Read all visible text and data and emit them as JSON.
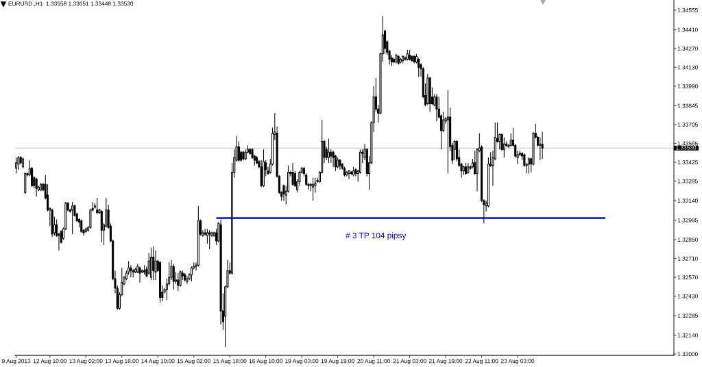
{
  "chart_data": {
    "type": "candlestick",
    "title": "EURUSD.,H1  1.33558 1.33651 1.33448 1.33530",
    "categories": [
      "9 Aug 2013",
      null,
      null,
      null,
      null,
      null,
      null,
      null,
      null,
      null,
      null,
      null,
      null,
      null,
      null,
      "12 Aug 10:00",
      null,
      null,
      null,
      null,
      null,
      null,
      null,
      null,
      null,
      null,
      null,
      null,
      null,
      null,
      null,
      "13 Aug 02:00",
      null,
      null,
      null,
      null,
      null,
      null,
      null,
      null,
      null,
      null,
      null,
      null,
      null,
      null,
      null,
      "13 Aug 18:00",
      null,
      null,
      null,
      null,
      null,
      null,
      null,
      null,
      null,
      null,
      null,
      null,
      null,
      null,
      null,
      "14 Aug 10:00",
      null,
      null,
      null,
      null,
      null,
      null,
      null,
      null,
      null,
      null,
      null,
      null,
      null,
      null,
      null,
      "15 Aug 02:00",
      null,
      null,
      null,
      null,
      null,
      null,
      null,
      null,
      null,
      null,
      null,
      null,
      null,
      null,
      null,
      "15 Aug 18:00",
      null,
      null,
      null,
      null,
      null,
      null,
      null,
      null,
      null,
      null,
      null,
      null,
      null,
      null,
      null,
      "16 Aug 10:00",
      null,
      null,
      null,
      null,
      null,
      null,
      null,
      null,
      null,
      null,
      null,
      null,
      null,
      null,
      null,
      "19 Aug 03:00",
      null,
      null,
      null,
      null,
      null,
      null,
      null,
      null,
      null,
      null,
      null,
      null,
      null,
      null,
      null,
      "19 Aug 19:00",
      null,
      null,
      null,
      null,
      null,
      null,
      null,
      null,
      null,
      null,
      null,
      null,
      null,
      null,
      null,
      "20 Aug 11:00",
      null,
      null,
      null,
      null,
      null,
      null,
      null,
      null,
      null,
      null,
      null,
      null,
      null,
      null,
      null,
      "21 Aug 03:00",
      null,
      null,
      null,
      null,
      null,
      null,
      null,
      null,
      null,
      null,
      null,
      null,
      null,
      null,
      null,
      "21 Aug 19:00",
      null,
      null,
      null,
      null,
      null,
      null,
      null,
      null,
      null,
      null,
      null,
      null,
      null,
      null,
      null,
      "22 Aug 11:00",
      null,
      null,
      null,
      null,
      null,
      null,
      null,
      null,
      null,
      null,
      null,
      null,
      null,
      null,
      null,
      "23 Aug 03:00",
      null,
      null,
      null,
      null,
      null,
      null,
      null,
      null,
      null,
      null,
      null,
      null,
      null,
      null,
      null,
      null,
      null,
      null,
      null,
      null,
      null,
      null,
      null,
      null,
      null,
      null,
      null,
      null,
      null,
      null,
      null,
      null,
      null,
      null,
      null,
      null,
      null,
      null,
      null,
      null,
      null,
      null,
      null,
      null,
      null,
      null,
      null,
      null,
      null,
      null,
      null,
      null,
      null,
      null,
      null,
      null,
      null,
      null,
      null,
      null,
      null,
      null,
      null,
      null,
      null,
      null,
      null,
      null,
      null
    ],
    "ohlc": [
      [
        1.3338,
        1.3346,
        1.3334,
        1.3342
      ],
      [
        1.3341,
        1.3347,
        1.3337,
        1.3346
      ],
      [
        1.3346,
        1.3347,
        1.3341,
        1.3342
      ],
      [
        1.3339,
        1.3346,
        1.3338,
        1.3345
      ],
      [
        1.332,
        1.3335,
        1.3319,
        1.3334
      ],
      [
        1.3334,
        1.3335,
        1.3332,
        1.3333
      ],
      [
        1.3333,
        1.3344,
        1.3332,
        1.3338
      ],
      [
        1.3338,
        1.3339,
        1.3324,
        1.3325
      ],
      [
        1.3331,
        1.3332,
        1.3323,
        1.3325
      ],
      [
        1.333,
        1.3331,
        1.3317,
        1.3323
      ],
      [
        1.3322,
        1.3325,
        1.3321,
        1.3324
      ],
      [
        1.3322,
        1.3327,
        1.3321,
        1.3326
      ],
      [
        1.3326,
        1.3327,
        1.3321,
        1.3322
      ],
      [
        1.3326,
        1.3333,
        1.3315,
        1.3316
      ],
      [
        1.3318,
        1.3326,
        1.3306,
        1.3307
      ],
      [
        1.3307,
        1.3309,
        1.3295,
        1.3308
      ],
      [
        1.3307,
        1.3308,
        1.3287,
        1.3289
      ],
      [
        1.329,
        1.3302,
        1.3288,
        1.3296
      ],
      [
        1.3296,
        1.33,
        1.3287,
        1.3288
      ],
      [
        1.3289,
        1.329,
        1.3277,
        1.3288
      ],
      [
        1.3291,
        1.3292,
        1.3282,
        1.3283
      ],
      [
        1.3286,
        1.3294,
        1.3285,
        1.3293
      ],
      [
        1.3293,
        1.3313,
        1.3292,
        1.3312
      ],
      [
        1.3312,
        1.3313,
        1.3306,
        1.3307
      ],
      [
        1.3307,
        1.3308,
        1.3305,
        1.3306
      ],
      [
        1.3307,
        1.3313,
        1.3289,
        1.331
      ],
      [
        1.331,
        1.3311,
        1.3302,
        1.3303
      ],
      [
        1.3304,
        1.3305,
        1.3298,
        1.3299
      ],
      [
        1.33,
        1.3301,
        1.3294,
        1.3298
      ],
      [
        1.3299,
        1.33,
        1.329,
        1.3291
      ],
      [
        1.3292,
        1.3293,
        1.3288,
        1.329
      ],
      [
        1.3291,
        1.3294,
        1.329,
        1.3293
      ],
      [
        1.3292,
        1.3295,
        1.3291,
        1.3294
      ],
      [
        1.3294,
        1.3308,
        1.3293,
        1.3307
      ],
      [
        1.3308,
        1.3313,
        1.3306,
        1.3307
      ],
      [
        1.3309,
        1.3312,
        1.3308,
        1.331
      ],
      [
        1.3307,
        1.3316,
        1.3304,
        1.3305
      ],
      [
        1.3305,
        1.3308,
        1.3304,
        1.3307
      ],
      [
        1.3306,
        1.3307,
        1.3283,
        1.3292
      ],
      [
        1.3292,
        1.3297,
        1.3281,
        1.3296
      ],
      [
        1.3295,
        1.3316,
        1.3294,
        1.3307
      ],
      [
        1.3307,
        1.3311,
        1.3293,
        1.3294
      ],
      [
        1.3295,
        1.3297,
        1.3283,
        1.3284
      ],
      [
        1.3284,
        1.3285,
        1.3255,
        1.3256
      ],
      [
        1.3256,
        1.3262,
        1.3245,
        1.3249
      ],
      [
        1.3249,
        1.3251,
        1.3233,
        1.3234
      ],
      [
        1.3234,
        1.3246,
        1.3233,
        1.3244
      ],
      [
        1.3244,
        1.3264,
        1.3243,
        1.3253
      ],
      [
        1.3252,
        1.3258,
        1.3251,
        1.3257
      ],
      [
        1.3256,
        1.3262,
        1.3255,
        1.326
      ],
      [
        1.3261,
        1.3269,
        1.3259,
        1.3264
      ],
      [
        1.3264,
        1.3266,
        1.3257,
        1.3262
      ],
      [
        1.3262,
        1.3263,
        1.3257,
        1.3261
      ],
      [
        1.3261,
        1.3264,
        1.326,
        1.3263
      ],
      [
        1.3261,
        1.3267,
        1.326,
        1.3265
      ],
      [
        1.3264,
        1.3265,
        1.3253,
        1.326
      ],
      [
        1.3261,
        1.3263,
        1.326,
        1.3262
      ],
      [
        1.3262,
        1.3266,
        1.3259,
        1.3261
      ],
      [
        1.3263,
        1.3265,
        1.3257,
        1.3258
      ],
      [
        1.326,
        1.3275,
        1.3259,
        1.3269
      ],
      [
        1.3257,
        1.3279,
        1.3255,
        1.3272
      ],
      [
        1.3272,
        1.328,
        1.3255,
        1.3262
      ],
      [
        1.3261,
        1.3277,
        1.3255,
        1.3269
      ],
      [
        1.3269,
        1.327,
        1.3261,
        1.3262
      ],
      [
        1.3268,
        1.3269,
        1.3238,
        1.3242
      ],
      [
        1.3246,
        1.3251,
        1.3239,
        1.3242
      ],
      [
        1.3246,
        1.3249,
        1.3245,
        1.3248
      ],
      [
        1.3248,
        1.3256,
        1.324,
        1.3252
      ],
      [
        1.3252,
        1.3268,
        1.3251,
        1.3257
      ],
      [
        1.3257,
        1.327,
        1.3255,
        1.3265
      ],
      [
        1.3265,
        1.3267,
        1.3248,
        1.3254
      ],
      [
        1.3254,
        1.3261,
        1.3252,
        1.3255
      ],
      [
        1.3255,
        1.326,
        1.3247,
        1.3251
      ],
      [
        1.3251,
        1.3262,
        1.325,
        1.3261
      ],
      [
        1.326,
        1.3262,
        1.3255,
        1.3258
      ],
      [
        1.3259,
        1.326,
        1.3254,
        1.3255
      ],
      [
        1.3254,
        1.3258,
        1.3252,
        1.3256
      ],
      [
        1.3256,
        1.326,
        1.3255,
        1.3259
      ],
      [
        1.3259,
        1.3265,
        1.3254,
        1.3264
      ],
      [
        1.3264,
        1.3268,
        1.3263,
        1.3265
      ],
      [
        1.3265,
        1.3268,
        1.3262,
        1.3266
      ],
      [
        1.3266,
        1.331,
        1.3265,
        1.3299
      ],
      [
        1.3299,
        1.33,
        1.3288,
        1.3289
      ],
      [
        1.3288,
        1.3292,
        1.3287,
        1.329
      ],
      [
        1.329,
        1.3293,
        1.3288,
        1.3289
      ],
      [
        1.3288,
        1.3293,
        1.3282,
        1.329
      ],
      [
        1.329,
        1.3292,
        1.3278,
        1.3289
      ],
      [
        1.3288,
        1.3291,
        1.3287,
        1.329
      ],
      [
        1.3288,
        1.3291,
        1.3287,
        1.329
      ],
      [
        1.329,
        1.3293,
        1.3281,
        1.3284
      ],
      [
        1.3284,
        1.3298,
        1.3283,
        1.3297
      ],
      [
        1.3296,
        1.33,
        1.3222,
        1.3232
      ],
      [
        1.3232,
        1.3245,
        1.3218,
        1.3224
      ],
      [
        1.3228,
        1.3251,
        1.3205,
        1.325
      ],
      [
        1.325,
        1.327,
        1.3249,
        1.3262
      ],
      [
        1.3262,
        1.3268,
        1.3259,
        1.326
      ],
      [
        1.326,
        1.3342,
        1.3259,
        1.3335
      ],
      [
        1.3335,
        1.3352,
        1.3331,
        1.3346
      ],
      [
        1.3344,
        1.3362,
        1.3343,
        1.3354
      ],
      [
        1.3354,
        1.3358,
        1.3343,
        1.3344
      ],
      [
        1.335,
        1.3351,
        1.3343,
        1.3344
      ],
      [
        1.335,
        1.3351,
        1.3344,
        1.3345
      ],
      [
        1.3345,
        1.3352,
        1.3344,
        1.335
      ],
      [
        1.335,
        1.3355,
        1.3349,
        1.3352
      ],
      [
        1.3352,
        1.3353,
        1.3348,
        1.3349
      ],
      [
        1.3352,
        1.3353,
        1.3345,
        1.3346
      ],
      [
        1.3347,
        1.3348,
        1.334,
        1.3344
      ],
      [
        1.3346,
        1.3347,
        1.3341,
        1.3342
      ],
      [
        1.3343,
        1.3344,
        1.3338,
        1.3339
      ],
      [
        1.3339,
        1.3344,
        1.3324,
        1.3325
      ],
      [
        1.3325,
        1.3352,
        1.3324,
        1.3343
      ],
      [
        1.3342,
        1.3344,
        1.3332,
        1.3337
      ],
      [
        1.3336,
        1.3339,
        1.3333,
        1.3334
      ],
      [
        1.3335,
        1.3345,
        1.3334,
        1.3341
      ],
      [
        1.3341,
        1.3368,
        1.334,
        1.3364
      ],
      [
        1.3363,
        1.3379,
        1.3359,
        1.3365
      ],
      [
        1.3364,
        1.3369,
        1.3331,
        1.3332
      ],
      [
        1.3332,
        1.3333,
        1.3319,
        1.332
      ],
      [
        1.332,
        1.3321,
        1.3314,
        1.3317
      ],
      [
        1.3325,
        1.3326,
        1.3314,
        1.3319
      ],
      [
        1.3318,
        1.3325,
        1.3311,
        1.3321
      ],
      [
        1.3321,
        1.334,
        1.332,
        1.3335
      ],
      [
        1.3335,
        1.3336,
        1.3332,
        1.3334
      ],
      [
        1.3335,
        1.3342,
        1.3325,
        1.3326
      ],
      [
        1.3334,
        1.3336,
        1.3324,
        1.3325
      ],
      [
        1.3322,
        1.333,
        1.332,
        1.3328
      ],
      [
        1.3328,
        1.3336,
        1.3325,
        1.3335
      ],
      [
        1.3335,
        1.3339,
        1.3334,
        1.3338
      ],
      [
        1.3338,
        1.3339,
        1.3332,
        1.3334
      ],
      [
        1.3333,
        1.3334,
        1.3325,
        1.3326
      ],
      [
        1.3326,
        1.3327,
        1.3322,
        1.3325
      ],
      [
        1.3325,
        1.3327,
        1.3321,
        1.3326
      ],
      [
        1.3324,
        1.3331,
        1.3314,
        1.3326
      ],
      [
        1.3325,
        1.3331,
        1.332,
        1.3327
      ],
      [
        1.3328,
        1.3331,
        1.3327,
        1.3329
      ],
      [
        1.3328,
        1.3336,
        1.3327,
        1.3335
      ],
      [
        1.3335,
        1.3374,
        1.3334,
        1.3358
      ],
      [
        1.3358,
        1.3359,
        1.3342,
        1.3346
      ],
      [
        1.3352,
        1.3354,
        1.3344,
        1.3346
      ],
      [
        1.3346,
        1.336,
        1.3342,
        1.335
      ],
      [
        1.335,
        1.3352,
        1.3342,
        1.3347
      ],
      [
        1.335,
        1.3351,
        1.3339,
        1.3346
      ],
      [
        1.3347,
        1.3348,
        1.3336,
        1.3339
      ],
      [
        1.3339,
        1.3346,
        1.3338,
        1.3344
      ],
      [
        1.3344,
        1.3345,
        1.3337,
        1.334
      ],
      [
        1.3341,
        1.3342,
        1.3337,
        1.3338
      ],
      [
        1.3338,
        1.3339,
        1.3332,
        1.3333
      ],
      [
        1.3333,
        1.3336,
        1.3332,
        1.3335
      ],
      [
        1.3334,
        1.3337,
        1.333,
        1.3336
      ],
      [
        1.3335,
        1.3336,
        1.3333,
        1.3334
      ],
      [
        1.3333,
        1.3339,
        1.3332,
        1.3336
      ],
      [
        1.3337,
        1.3338,
        1.3332,
        1.3334
      ],
      [
        1.3334,
        1.3337,
        1.3328,
        1.3336
      ],
      [
        1.3335,
        1.3352,
        1.3334,
        1.335
      ],
      [
        1.335,
        1.3352,
        1.3342,
        1.3349
      ],
      [
        1.3346,
        1.3356,
        1.3344,
        1.3352
      ],
      [
        1.3352,
        1.3353,
        1.3332,
        1.3334
      ],
      [
        1.3334,
        1.3347,
        1.3322,
        1.3342
      ],
      [
        1.3342,
        1.3373,
        1.3341,
        1.3372
      ],
      [
        1.3372,
        1.3399,
        1.3365,
        1.3391
      ],
      [
        1.3391,
        1.3405,
        1.338,
        1.3382
      ],
      [
        1.3382,
        1.3385,
        1.3372,
        1.3379
      ],
      [
        1.3379,
        1.3424,
        1.3378,
        1.3423
      ],
      [
        1.3423,
        1.3451,
        1.3417,
        1.3437
      ],
      [
        1.344,
        1.3441,
        1.3423,
        1.3427
      ],
      [
        1.3432,
        1.3433,
        1.3422,
        1.3424
      ],
      [
        1.3425,
        1.3426,
        1.3415,
        1.3419
      ],
      [
        1.342,
        1.3422,
        1.3414,
        1.3417
      ],
      [
        1.3419,
        1.342,
        1.3416,
        1.3417
      ],
      [
        1.3417,
        1.3423,
        1.3416,
        1.3422
      ],
      [
        1.3421,
        1.3422,
        1.3415,
        1.3416
      ],
      [
        1.3417,
        1.342,
        1.3416,
        1.3419
      ],
      [
        1.3418,
        1.3422,
        1.3416,
        1.3421
      ],
      [
        1.342,
        1.3421,
        1.3418,
        1.3419
      ],
      [
        1.3419,
        1.3426,
        1.3418,
        1.3423
      ],
      [
        1.3422,
        1.3426,
        1.3418,
        1.3419
      ],
      [
        1.3421,
        1.3422,
        1.3417,
        1.3418
      ],
      [
        1.3421,
        1.3422,
        1.3416,
        1.3417
      ],
      [
        1.3417,
        1.3423,
        1.3416,
        1.3421
      ],
      [
        1.3419,
        1.342,
        1.3406,
        1.3413
      ],
      [
        1.3415,
        1.3416,
        1.3406,
        1.3412
      ],
      [
        1.3412,
        1.3413,
        1.339,
        1.3391
      ],
      [
        1.3392,
        1.3401,
        1.3384,
        1.3385
      ],
      [
        1.3386,
        1.3408,
        1.3385,
        1.3405
      ],
      [
        1.3405,
        1.3406,
        1.338,
        1.3386
      ],
      [
        1.3391,
        1.3398,
        1.3385,
        1.3386
      ],
      [
        1.3385,
        1.3393,
        1.3384,
        1.3391
      ],
      [
        1.3391,
        1.3393,
        1.3373,
        1.3382
      ],
      [
        1.3382,
        1.3391,
        1.3375,
        1.3376
      ],
      [
        1.3377,
        1.3378,
        1.3352,
        1.3366
      ],
      [
        1.3366,
        1.338,
        1.3365,
        1.3374
      ],
      [
        1.3373,
        1.3376,
        1.3371,
        1.3375
      ],
      [
        1.3374,
        1.3396,
        1.3334,
        1.3376
      ],
      [
        1.3376,
        1.3383,
        1.3351,
        1.3354
      ],
      [
        1.3355,
        1.3357,
        1.3341,
        1.3344
      ],
      [
        1.3352,
        1.3359,
        1.3344,
        1.3358
      ],
      [
        1.3358,
        1.3359,
        1.3343,
        1.3345
      ],
      [
        1.3346,
        1.3352,
        1.3339,
        1.334
      ],
      [
        1.3341,
        1.3342,
        1.3331,
        1.3336
      ],
      [
        1.3336,
        1.334,
        1.3333,
        1.3339
      ],
      [
        1.3339,
        1.3342,
        1.3333,
        1.3334
      ],
      [
        1.3335,
        1.3342,
        1.3334,
        1.3339
      ],
      [
        1.3339,
        1.334,
        1.3337,
        1.3338
      ],
      [
        1.3339,
        1.3345,
        1.3338,
        1.3342
      ],
      [
        1.3342,
        1.3351,
        1.3333,
        1.3334
      ],
      [
        1.3334,
        1.3353,
        1.3321,
        1.3352
      ],
      [
        1.3351,
        1.3364,
        1.335,
        1.3353
      ],
      [
        1.3354,
        1.3355,
        1.3313,
        1.3314
      ],
      [
        1.3314,
        1.3315,
        1.3297,
        1.3311
      ],
      [
        1.331,
        1.3314,
        1.3306,
        1.3312
      ],
      [
        1.331,
        1.3346,
        1.3309,
        1.3341
      ],
      [
        1.3341,
        1.335,
        1.3339,
        1.334
      ],
      [
        1.334,
        1.3351,
        1.3325,
        1.3346
      ],
      [
        1.3345,
        1.3372,
        1.3344,
        1.3361
      ],
      [
        1.336,
        1.3372,
        1.3357,
        1.3358
      ],
      [
        1.3358,
        1.3364,
        1.3352,
        1.3363
      ],
      [
        1.3363,
        1.3364,
        1.3351,
        1.3352
      ],
      [
        1.3352,
        1.3361,
        1.3346,
        1.3356
      ],
      [
        1.3356,
        1.3358,
        1.3354,
        1.3355
      ],
      [
        1.3354,
        1.3356,
        1.3353,
        1.3355
      ],
      [
        1.3355,
        1.3364,
        1.3354,
        1.3359
      ],
      [
        1.3359,
        1.3368,
        1.3354,
        1.3355
      ],
      [
        1.3355,
        1.3356,
        1.3346,
        1.3347
      ],
      [
        1.3346,
        1.3351,
        1.3341,
        1.3348
      ],
      [
        1.3348,
        1.3351,
        1.3347,
        1.3349
      ],
      [
        1.3349,
        1.335,
        1.3344,
        1.3347
      ],
      [
        1.3348,
        1.3349,
        1.3339,
        1.334
      ],
      [
        1.334,
        1.3342,
        1.3334,
        1.3341
      ],
      [
        1.3341,
        1.3346,
        1.3334,
        1.3345
      ],
      [
        1.3345,
        1.3346,
        1.3335,
        1.3341
      ],
      [
        1.3341,
        1.3365,
        1.334,
        1.3364
      ],
      [
        1.3364,
        1.3371,
        1.336,
        1.3361
      ],
      [
        1.3361,
        1.3362,
        1.3354,
        1.3355
      ],
      [
        1.3355,
        1.3361,
        1.3344,
        1.3356
      ],
      [
        1.33558,
        1.33651,
        1.33448,
        1.3353
      ],
      null,
      null,
      null,
      null,
      null,
      null,
      null,
      null,
      null,
      null,
      null,
      null,
      null,
      null,
      null,
      null,
      null,
      null,
      null,
      null,
      null,
      null,
      null,
      null,
      null,
      null,
      null,
      null,
      null,
      null,
      null,
      null,
      null,
      null,
      null,
      null,
      null,
      null,
      null,
      null,
      null,
      null,
      null,
      null,
      null,
      null,
      null,
      null,
      null,
      null,
      null,
      null,
      null,
      null,
      null,
      null,
      null,
      null
    ],
    "series": [
      {
        "type": "line",
        "name": "# 3 TP 104 pipsy",
        "color": "#0000ff",
        "values": [
          null,
          null,
          null,
          null,
          null,
          null,
          null,
          null,
          null,
          null,
          null,
          null,
          null,
          null,
          null,
          null,
          null,
          null,
          null,
          null,
          null,
          null,
          null,
          null,
          null,
          null,
          null,
          null,
          null,
          null,
          null,
          null,
          null,
          null,
          null,
          null,
          null,
          null,
          null,
          null,
          null,
          null,
          null,
          null,
          null,
          null,
          null,
          null,
          null,
          null,
          null,
          null,
          null,
          null,
          null,
          null,
          null,
          null,
          null,
          null,
          null,
          null,
          null,
          null,
          null,
          null,
          null,
          null,
          null,
          null,
          null,
          null,
          null,
          null,
          null,
          null,
          null,
          null,
          null,
          null,
          null,
          null,
          null,
          null,
          null,
          null,
          null,
          null,
          null,
          1.3301,
          1.3301,
          1.3301,
          1.3301,
          1.3301,
          1.3301,
          1.3301,
          1.3301,
          1.3301,
          1.3301,
          1.3301,
          1.3301,
          1.3301,
          1.3301,
          1.3301,
          1.3301,
          1.3301,
          1.3301,
          1.3301,
          1.3301,
          1.3301,
          1.3301,
          1.3301,
          1.3301,
          1.3301,
          1.3301,
          1.3301,
          1.3301,
          1.3301,
          1.3301,
          1.3301,
          1.3301,
          1.3301,
          1.3301,
          1.3301,
          1.3301,
          1.3301,
          1.3301,
          1.3301,
          1.3301,
          1.3301,
          1.3301,
          1.3301,
          1.3301,
          1.3301,
          1.3301,
          1.3301,
          1.3301,
          1.3301,
          1.3301,
          1.3301,
          1.3301,
          1.3301,
          1.3301,
          1.3301,
          1.3301,
          1.3301,
          1.3301,
          1.3301,
          1.3301,
          1.3301,
          1.3301,
          1.3301,
          1.3301,
          1.3301,
          1.3301,
          1.3301,
          1.3301,
          1.3301,
          1.3301,
          1.3301,
          1.3301,
          1.3301,
          1.3301,
          1.3301,
          1.3301,
          1.3301,
          1.3301,
          1.3301,
          1.3301,
          1.3301,
          1.3301,
          1.3301,
          1.3301,
          1.3301,
          1.3301,
          1.3301,
          1.3301,
          1.3301,
          1.3301,
          1.3301,
          1.3301,
          1.3301,
          1.3301,
          1.3301,
          1.3301,
          1.3301,
          1.3301,
          1.3301,
          1.3301,
          1.3301,
          1.3301,
          1.3301,
          1.3301,
          1.3301,
          1.3301,
          1.3301,
          1.3301,
          1.3301,
          1.3301,
          1.3301,
          1.3301,
          1.3301,
          1.3301,
          1.3301,
          1.3301,
          1.3301,
          1.3301,
          1.3301,
          1.3301,
          1.3301,
          1.3301,
          1.3301,
          1.3301,
          1.3301,
          1.3301,
          1.3301,
          1.3301,
          1.3301,
          1.3301,
          1.3301,
          1.3301,
          1.3301,
          1.3301,
          1.3301,
          1.3301,
          1.3301,
          1.3301,
          1.3301,
          1.3301,
          1.3301,
          1.3301,
          1.3301,
          1.3301,
          1.3301,
          1.3301,
          1.3301,
          1.3301,
          1.3301,
          1.3301,
          1.3301,
          1.3301,
          1.3301,
          1.3301,
          1.3301,
          1.3301,
          1.3301,
          1.3301,
          1.3301,
          1.3301,
          1.3301,
          1.3301,
          1.3301,
          1.3301,
          1.3301,
          1.3301,
          1.3301,
          1.3301,
          1.3301,
          1.3301,
          1.3301,
          1.3301,
          1.3301,
          1.3301,
          null,
          null,
          null,
          null,
          null,
          null,
          null,
          null,
          null,
          null,
          null,
          null,
          null,
          null,
          null,
          null,
          null,
          null,
          null,
          null,
          null,
          null,
          null,
          null,
          null,
          null,
          null,
          null,
          null,
          null
        ]
      }
    ],
    "ylim": [
      1.3199,
      1.3463
    ],
    "yticks": [
      {
        "value": 1.32,
        "label": "1.32000"
      },
      {
        "value": 1.3214,
        "label": "1.32140"
      },
      1.32285,
      {
        "value": 1.3243,
        "label": "1.32430"
      },
      {
        "value": 1.3257,
        "label": "1.32570"
      },
      {
        "value": 1.3271,
        "label": "1.32710"
      },
      {
        "value": 1.3285,
        "label": "1.32850"
      },
      1.32995,
      {
        "value": 1.3314,
        "label": "1.33140"
      },
      1.33285,
      1.33425,
      1.33565,
      1.33705,
      1.33845,
      {
        "value": 1.3399,
        "label": "1.33990"
      },
      {
        "value": 1.3413,
        "label": "1.34130"
      },
      {
        "value": 1.3427,
        "label": "1.34270"
      },
      {
        "value": 1.3441,
        "label": "1.34410"
      },
      1.34555
    ],
    "ref_lines": [
      {
        "axis": "y",
        "value": 1.3353,
        "label": "1.33530",
        "color": "#c0c0c0"
      }
    ]
  }
}
